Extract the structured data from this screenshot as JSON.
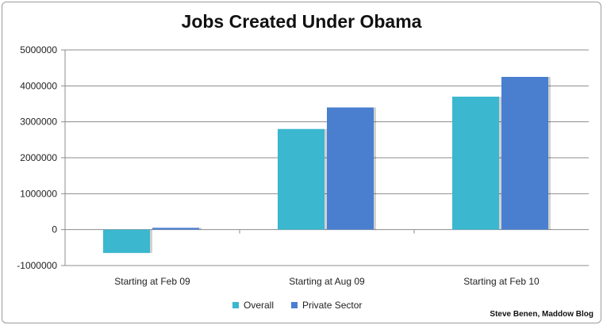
{
  "chart_data": {
    "type": "bar",
    "title": "Jobs Created Under Obama",
    "categories": [
      "Starting at Feb 09",
      "Starting at Aug 09",
      "Starting at Feb 10"
    ],
    "series": [
      {
        "name": "Overall",
        "color": "#3bb7cf",
        "values": [
          -650000,
          2800000,
          3700000
        ]
      },
      {
        "name": "Private Sector",
        "color": "#4a7fd0",
        "values": [
          50000,
          3400000,
          4250000
        ]
      }
    ],
    "ylim": [
      -1000000,
      5000000
    ],
    "yticks": [
      "5000000",
      "4000000",
      "3000000",
      "2000000",
      "1000000",
      "0",
      "-1000000"
    ],
    "ytick_values": [
      5000000,
      4000000,
      3000000,
      2000000,
      1000000,
      0,
      -1000000
    ],
    "grid": true,
    "legend_position": "bottom"
  },
  "credit": "Steve Benen, Maddow Blog"
}
